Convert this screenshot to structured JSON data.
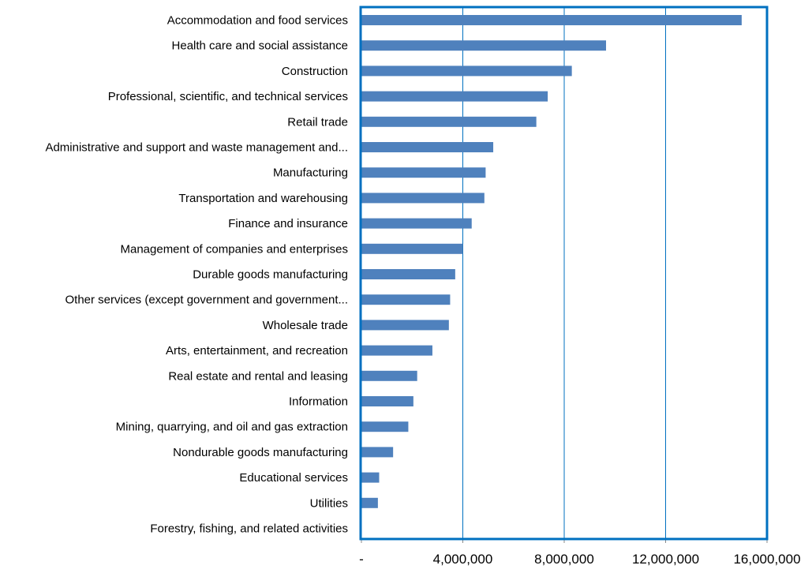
{
  "chart_data": {
    "type": "bar",
    "orientation": "horizontal",
    "categories": [
      "Accommodation and food services",
      "Health care and social assistance",
      "Construction",
      "Professional, scientific, and technical services",
      "Retail trade",
      "Administrative and support and waste management and...",
      "Manufacturing",
      "Transportation and warehousing",
      "Finance and insurance",
      "Management of companies and enterprises",
      "Durable goods manufacturing",
      "Other services (except government and government...",
      "Wholesale trade",
      "Arts, entertainment, and recreation",
      "Real estate and rental and leasing",
      "Information",
      "Mining, quarrying, and oil and gas extraction",
      "Nondurable goods manufacturing",
      "Educational services",
      "Utilities",
      "Forestry, fishing, and related activities"
    ],
    "values": [
      15000000,
      9650000,
      8300000,
      7350000,
      6900000,
      5200000,
      4900000,
      4850000,
      4350000,
      4000000,
      3700000,
      3500000,
      3450000,
      2800000,
      2200000,
      2050000,
      1850000,
      1250000,
      700000,
      650000,
      0
    ],
    "xlim": [
      0,
      16000000
    ],
    "xticks": [
      0,
      4000000,
      8000000,
      12000000,
      16000000
    ],
    "xtick_labels": [
      "-",
      "4,000,000",
      "8,000,000",
      "12,000,000",
      "16,000,000"
    ],
    "grid": "vertical",
    "legend": "none",
    "title": "",
    "xlabel": "",
    "ylabel": "",
    "colors": {
      "bar": "#4f81bd",
      "plot_border": "#0070c0",
      "gridline": "#0070c0",
      "axis": "#888888"
    }
  }
}
